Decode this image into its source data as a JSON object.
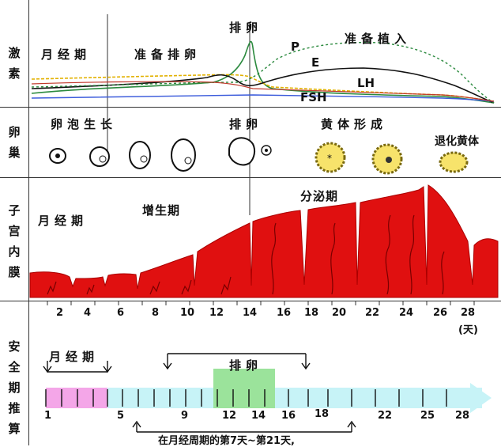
{
  "rows": {
    "hormone": [
      "激",
      "素"
    ],
    "ovary": [
      "卵",
      "巢"
    ],
    "endometrium": [
      "子",
      "宫",
      "内",
      "膜"
    ],
    "safe": [
      "安",
      "全",
      "期",
      "推",
      "算"
    ]
  },
  "hormone_panel": {
    "menstrual": "月经期",
    "prep_ovulation": "准备排卵",
    "ovulation": "排卵",
    "prep_implant": "准备植入",
    "P": "P",
    "E": "E",
    "LH": "LH",
    "FSH": "FSH"
  },
  "ovary_panel": {
    "follicle_growth": "卵泡生长",
    "ovulation": "排卵",
    "corpus_luteum": "黄体形成",
    "regression": "退化黄体"
  },
  "endo_panel": {
    "menstrual": "月经期",
    "proliferative": "增生期",
    "secretory": "分泌期"
  },
  "day_axis": {
    "ticks": [
      "2",
      "4",
      "6",
      "8",
      "10",
      "12",
      "14",
      "16",
      "18",
      "20",
      "22",
      "24",
      "26",
      "28"
    ],
    "unit": "(天)"
  },
  "safe_panel": {
    "menstrual": "月经期",
    "ovulation": "排卵",
    "numbers": [
      "1",
      "5",
      "9",
      "12",
      "14",
      "16",
      "18",
      "22",
      "25",
      "28"
    ],
    "note": "在月经周期的第7天~第21天,"
  },
  "colors": {
    "endometrium": "#e01010",
    "menstrual_bar": "#f4a6e8",
    "ovulation_bar": "#9be39b",
    "safe_bar": "#b8f0f4"
  }
}
